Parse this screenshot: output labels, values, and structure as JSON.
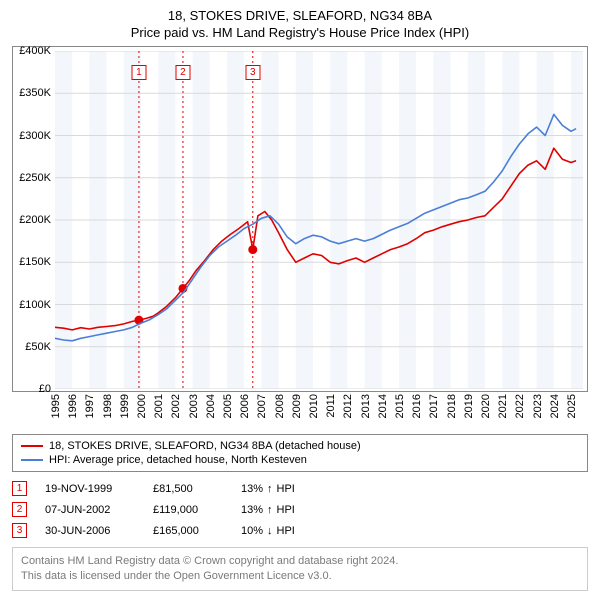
{
  "title_line1": "18, STOKES DRIVE, SLEAFORD, NG34 8BA",
  "title_line2": "Price paid vs. HM Land Registry's House Price Index (HPI)",
  "chart": {
    "type": "line",
    "background_color": "#ffffff",
    "shade_color": "#f3f7fb",
    "grid_color": "#d9d9d9",
    "border_color": "#888888",
    "ylim": [
      0,
      400000
    ],
    "ytick_step": 50000,
    "y_ticks": [
      "£0",
      "£50K",
      "£100K",
      "£150K",
      "£200K",
      "£250K",
      "£300K",
      "£350K",
      "£400K"
    ],
    "xlim": [
      1995,
      2025.7
    ],
    "x_ticks": [
      1995,
      1996,
      1997,
      1998,
      1999,
      2000,
      2001,
      2002,
      2003,
      2004,
      2005,
      2006,
      2007,
      2008,
      2009,
      2010,
      2011,
      2012,
      2013,
      2014,
      2015,
      2016,
      2017,
      2018,
      2019,
      2020,
      2021,
      2022,
      2023,
      2024,
      2025
    ],
    "shade_years": [
      [
        1995,
        1996
      ],
      [
        1997,
        1998
      ],
      [
        1999,
        2000
      ],
      [
        2001,
        2002
      ],
      [
        2003,
        2004
      ],
      [
        2005,
        2006
      ],
      [
        2007,
        2008
      ],
      [
        2009,
        2010
      ],
      [
        2011,
        2012
      ],
      [
        2013,
        2014
      ],
      [
        2015,
        2016
      ],
      [
        2017,
        2018
      ],
      [
        2019,
        2020
      ],
      [
        2021,
        2022
      ],
      [
        2023,
        2024
      ],
      [
        2025,
        2025.7
      ]
    ],
    "series": [
      {
        "name": "price_paid",
        "label": "18, STOKES DRIVE, SLEAFORD, NG34 8BA (detached house)",
        "color": "#e10000",
        "line_width": 1.6,
        "data": [
          [
            1995.0,
            73000
          ],
          [
            1995.5,
            72000
          ],
          [
            1996.0,
            70000
          ],
          [
            1996.5,
            72500
          ],
          [
            1997.0,
            71000
          ],
          [
            1997.5,
            73000
          ],
          [
            1998.0,
            74000
          ],
          [
            1998.5,
            75000
          ],
          [
            1999.0,
            77000
          ],
          [
            1999.5,
            80000
          ],
          [
            1999.88,
            81500
          ],
          [
            2000.3,
            83500
          ],
          [
            2000.7,
            86000
          ],
          [
            2001.0,
            90000
          ],
          [
            2001.5,
            98000
          ],
          [
            2002.0,
            108000
          ],
          [
            2002.44,
            119000
          ],
          [
            2002.8,
            128000
          ],
          [
            2003.2,
            140000
          ],
          [
            2003.7,
            152000
          ],
          [
            2004.2,
            165000
          ],
          [
            2004.7,
            175000
          ],
          [
            2005.2,
            183000
          ],
          [
            2005.7,
            190000
          ],
          [
            2006.2,
            198000
          ],
          [
            2006.5,
            165000
          ],
          [
            2006.8,
            205000
          ],
          [
            2007.2,
            210000
          ],
          [
            2007.6,
            200000
          ],
          [
            2008.0,
            185000
          ],
          [
            2008.5,
            165000
          ],
          [
            2009.0,
            150000
          ],
          [
            2009.5,
            155000
          ],
          [
            2010.0,
            160000
          ],
          [
            2010.5,
            158000
          ],
          [
            2011.0,
            150000
          ],
          [
            2011.5,
            148000
          ],
          [
            2012.0,
            152000
          ],
          [
            2012.5,
            155000
          ],
          [
            2013.0,
            150000
          ],
          [
            2013.5,
            155000
          ],
          [
            2014.0,
            160000
          ],
          [
            2014.5,
            165000
          ],
          [
            2015.0,
            168000
          ],
          [
            2015.5,
            172000
          ],
          [
            2016.0,
            178000
          ],
          [
            2016.5,
            185000
          ],
          [
            2017.0,
            188000
          ],
          [
            2017.5,
            192000
          ],
          [
            2018.0,
            195000
          ],
          [
            2018.5,
            198000
          ],
          [
            2019.0,
            200000
          ],
          [
            2019.5,
            203000
          ],
          [
            2020.0,
            205000
          ],
          [
            2020.5,
            215000
          ],
          [
            2021.0,
            225000
          ],
          [
            2021.5,
            240000
          ],
          [
            2022.0,
            255000
          ],
          [
            2022.5,
            265000
          ],
          [
            2023.0,
            270000
          ],
          [
            2023.5,
            260000
          ],
          [
            2024.0,
            285000
          ],
          [
            2024.5,
            272000
          ],
          [
            2025.0,
            268000
          ],
          [
            2025.3,
            270000
          ]
        ]
      },
      {
        "name": "hpi",
        "label": "HPI: Average price, detached house, North Kesteven",
        "color": "#4a7fd6",
        "line_width": 1.6,
        "data": [
          [
            1995.0,
            60000
          ],
          [
            1995.5,
            58000
          ],
          [
            1996.0,
            57000
          ],
          [
            1996.5,
            60000
          ],
          [
            1997.0,
            62000
          ],
          [
            1997.5,
            64000
          ],
          [
            1998.0,
            66000
          ],
          [
            1998.5,
            68000
          ],
          [
            1999.0,
            70000
          ],
          [
            1999.5,
            73000
          ],
          [
            2000.0,
            78000
          ],
          [
            2000.5,
            82000
          ],
          [
            2001.0,
            88000
          ],
          [
            2001.5,
            95000
          ],
          [
            2002.0,
            105000
          ],
          [
            2002.5,
            115000
          ],
          [
            2003.0,
            130000
          ],
          [
            2003.5,
            145000
          ],
          [
            2004.0,
            158000
          ],
          [
            2004.5,
            168000
          ],
          [
            2005.0,
            175000
          ],
          [
            2005.5,
            182000
          ],
          [
            2006.0,
            190000
          ],
          [
            2006.5,
            195000
          ],
          [
            2007.0,
            202000
          ],
          [
            2007.5,
            205000
          ],
          [
            2008.0,
            195000
          ],
          [
            2008.5,
            180000
          ],
          [
            2009.0,
            172000
          ],
          [
            2009.5,
            178000
          ],
          [
            2010.0,
            182000
          ],
          [
            2010.5,
            180000
          ],
          [
            2011.0,
            175000
          ],
          [
            2011.5,
            172000
          ],
          [
            2012.0,
            175000
          ],
          [
            2012.5,
            178000
          ],
          [
            2013.0,
            175000
          ],
          [
            2013.5,
            178000
          ],
          [
            2014.0,
            183000
          ],
          [
            2014.5,
            188000
          ],
          [
            2015.0,
            192000
          ],
          [
            2015.5,
            196000
          ],
          [
            2016.0,
            202000
          ],
          [
            2016.5,
            208000
          ],
          [
            2017.0,
            212000
          ],
          [
            2017.5,
            216000
          ],
          [
            2018.0,
            220000
          ],
          [
            2018.5,
            224000
          ],
          [
            2019.0,
            226000
          ],
          [
            2019.5,
            230000
          ],
          [
            2020.0,
            234000
          ],
          [
            2020.5,
            245000
          ],
          [
            2021.0,
            258000
          ],
          [
            2021.5,
            275000
          ],
          [
            2022.0,
            290000
          ],
          [
            2022.5,
            302000
          ],
          [
            2023.0,
            310000
          ],
          [
            2023.5,
            300000
          ],
          [
            2024.0,
            325000
          ],
          [
            2024.5,
            312000
          ],
          [
            2025.0,
            305000
          ],
          [
            2025.3,
            308000
          ]
        ]
      }
    ],
    "sale_markers": [
      {
        "n": "1",
        "x": 1999.88,
        "y": 81500,
        "color": "#e10000"
      },
      {
        "n": "2",
        "x": 2002.44,
        "y": 119000,
        "color": "#e10000"
      },
      {
        "n": "3",
        "x": 2006.5,
        "y": 165000,
        "color": "#e10000"
      }
    ],
    "label_fontsize": 11
  },
  "legend": {
    "items": [
      {
        "color": "#e10000",
        "label": "18, STOKES DRIVE, SLEAFORD, NG34 8BA (detached house)"
      },
      {
        "color": "#4a7fd6",
        "label": "HPI: Average price, detached house, North Kesteven"
      }
    ]
  },
  "sales": [
    {
      "n": "1",
      "color": "#e10000",
      "date": "19-NOV-1999",
      "price": "£81,500",
      "delta_pct": "13%",
      "arrow": "↑",
      "delta_label": "HPI"
    },
    {
      "n": "2",
      "color": "#e10000",
      "date": "07-JUN-2002",
      "price": "£119,000",
      "delta_pct": "13%",
      "arrow": "↑",
      "delta_label": "HPI"
    },
    {
      "n": "3",
      "color": "#e10000",
      "date": "30-JUN-2006",
      "price": "£165,000",
      "delta_pct": "10%",
      "arrow": "↓",
      "delta_label": "HPI"
    }
  ],
  "attribution": {
    "line1": "Contains HM Land Registry data © Crown copyright and database right 2024.",
    "line2": "This data is licensed under the Open Government Licence v3.0."
  }
}
